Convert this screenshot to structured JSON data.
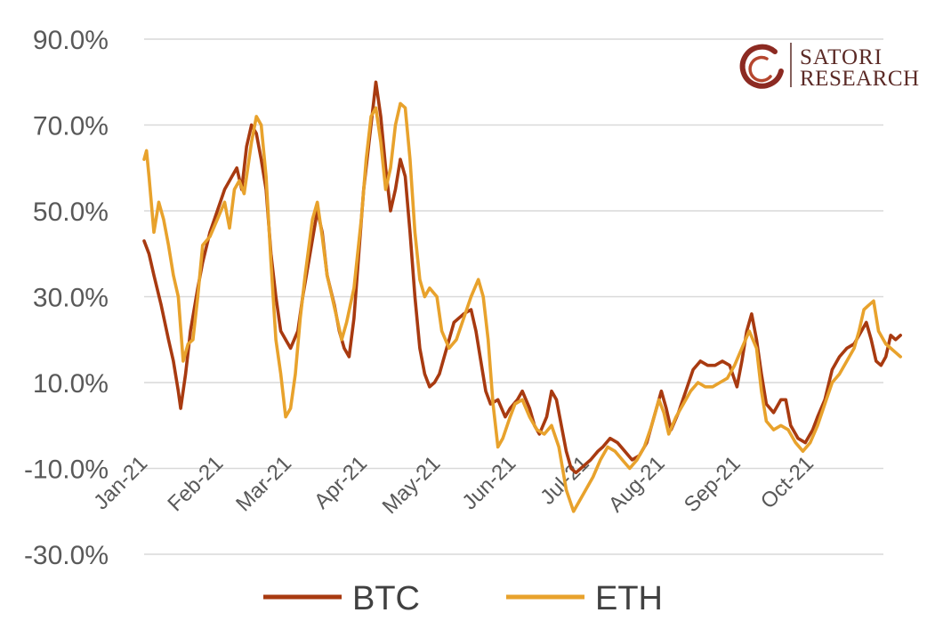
{
  "chart_data": {
    "type": "line",
    "title": "",
    "xlabel": "",
    "ylabel": "",
    "ylim": [
      -30,
      90
    ],
    "yticks": [
      -30,
      -10,
      10,
      30,
      50,
      70,
      90
    ],
    "ytick_labels": [
      "-30.0%",
      "-10.0%",
      "10.0%",
      "30.0%",
      "50.0%",
      "70.0%",
      "90.0%"
    ],
    "xticks": [
      "2021-01-01",
      "2021-02-01",
      "2021-03-01",
      "2021-04-01",
      "2021-05-01",
      "2021-06-01",
      "2021-07-01",
      "2021-08-01",
      "2021-09-01",
      "2021-10-01"
    ],
    "xtick_labels": [
      "Jan-21",
      "Feb-21",
      "Mar-21",
      "Apr-21",
      "May-21",
      "Jun-21",
      "Jul-21",
      "Aug-21",
      "Sep-21",
      "Oct-21"
    ],
    "xlim": [
      "2021-01-01",
      "2021-10-31"
    ],
    "grid": true,
    "legend_position": "bottom",
    "series": [
      {
        "name": "BTC",
        "color": "#a83a10",
        "points": [
          [
            "2021-01-01",
            43
          ],
          [
            "2021-01-03",
            40
          ],
          [
            "2021-01-05",
            35
          ],
          [
            "2021-01-08",
            28
          ],
          [
            "2021-01-11",
            20
          ],
          [
            "2021-01-13",
            15
          ],
          [
            "2021-01-15",
            8
          ],
          [
            "2021-01-16",
            4
          ],
          [
            "2021-01-18",
            12
          ],
          [
            "2021-01-20",
            22
          ],
          [
            "2021-01-23",
            32
          ],
          [
            "2021-01-25",
            38
          ],
          [
            "2021-01-28",
            45
          ],
          [
            "2021-01-31",
            50
          ],
          [
            "2021-02-03",
            55
          ],
          [
            "2021-02-06",
            58
          ],
          [
            "2021-02-08",
            60
          ],
          [
            "2021-02-10",
            55
          ],
          [
            "2021-02-12",
            65
          ],
          [
            "2021-02-14",
            70
          ],
          [
            "2021-02-16",
            68
          ],
          [
            "2021-02-18",
            62
          ],
          [
            "2021-02-20",
            55
          ],
          [
            "2021-02-22",
            40
          ],
          [
            "2021-02-24",
            30
          ],
          [
            "2021-02-26",
            22
          ],
          [
            "2021-02-28",
            20
          ],
          [
            "2021-03-02",
            18
          ],
          [
            "2021-03-05",
            22
          ],
          [
            "2021-03-07",
            30
          ],
          [
            "2021-03-10",
            40
          ],
          [
            "2021-03-13",
            50
          ],
          [
            "2021-03-15",
            45
          ],
          [
            "2021-03-17",
            35
          ],
          [
            "2021-03-20",
            28
          ],
          [
            "2021-03-22",
            22
          ],
          [
            "2021-03-24",
            18
          ],
          [
            "2021-03-26",
            16
          ],
          [
            "2021-03-28",
            25
          ],
          [
            "2021-03-30",
            40
          ],
          [
            "2021-04-01",
            55
          ],
          [
            "2021-04-03",
            65
          ],
          [
            "2021-04-05",
            75
          ],
          [
            "2021-04-06",
            80
          ],
          [
            "2021-04-08",
            72
          ],
          [
            "2021-04-10",
            60
          ],
          [
            "2021-04-12",
            50
          ],
          [
            "2021-04-14",
            55
          ],
          [
            "2021-04-16",
            62
          ],
          [
            "2021-04-18",
            58
          ],
          [
            "2021-04-20",
            45
          ],
          [
            "2021-04-22",
            30
          ],
          [
            "2021-04-24",
            18
          ],
          [
            "2021-04-26",
            12
          ],
          [
            "2021-04-28",
            9
          ],
          [
            "2021-04-30",
            10
          ],
          [
            "2021-05-02",
            12
          ],
          [
            "2021-05-05",
            18
          ],
          [
            "2021-05-08",
            24
          ],
          [
            "2021-05-12",
            26
          ],
          [
            "2021-05-15",
            27
          ],
          [
            "2021-05-17",
            22
          ],
          [
            "2021-05-19",
            15
          ],
          [
            "2021-05-21",
            8
          ],
          [
            "2021-05-23",
            5
          ],
          [
            "2021-05-26",
            6
          ],
          [
            "2021-05-29",
            2
          ],
          [
            "2021-05-31",
            4
          ],
          [
            "2021-06-03",
            6
          ],
          [
            "2021-06-05",
            8
          ],
          [
            "2021-06-08",
            4
          ],
          [
            "2021-06-10",
            0
          ],
          [
            "2021-06-12",
            -2
          ],
          [
            "2021-06-15",
            2
          ],
          [
            "2021-06-17",
            8
          ],
          [
            "2021-06-19",
            6
          ],
          [
            "2021-06-21",
            0
          ],
          [
            "2021-06-23",
            -6
          ],
          [
            "2021-06-25",
            -10
          ],
          [
            "2021-06-27",
            -11
          ],
          [
            "2021-06-29",
            -10
          ],
          [
            "2021-07-01",
            -9
          ],
          [
            "2021-07-03",
            -8
          ],
          [
            "2021-07-06",
            -6
          ],
          [
            "2021-07-08",
            -5
          ],
          [
            "2021-07-11",
            -3
          ],
          [
            "2021-07-14",
            -4
          ],
          [
            "2021-07-17",
            -6
          ],
          [
            "2021-07-20",
            -8
          ],
          [
            "2021-07-23",
            -7
          ],
          [
            "2021-07-26",
            -4
          ],
          [
            "2021-07-29",
            2
          ],
          [
            "2021-08-01",
            8
          ],
          [
            "2021-08-03",
            4
          ],
          [
            "2021-08-05",
            -1
          ],
          [
            "2021-08-08",
            3
          ],
          [
            "2021-08-11",
            8
          ],
          [
            "2021-08-14",
            13
          ],
          [
            "2021-08-17",
            15
          ],
          [
            "2021-08-20",
            14
          ],
          [
            "2021-08-23",
            14
          ],
          [
            "2021-08-26",
            15
          ],
          [
            "2021-08-29",
            14
          ],
          [
            "2021-09-01",
            9
          ],
          [
            "2021-09-03",
            15
          ],
          [
            "2021-09-05",
            22
          ],
          [
            "2021-09-07",
            26
          ],
          [
            "2021-09-09",
            20
          ],
          [
            "2021-09-11",
            12
          ],
          [
            "2021-09-13",
            5
          ],
          [
            "2021-09-16",
            3
          ],
          [
            "2021-09-19",
            6
          ],
          [
            "2021-09-21",
            6
          ],
          [
            "2021-09-23",
            0
          ],
          [
            "2021-09-26",
            -3
          ],
          [
            "2021-09-29",
            -4
          ],
          [
            "2021-10-02",
            -1
          ],
          [
            "2021-10-04",
            2
          ],
          [
            "2021-10-07",
            6
          ],
          [
            "2021-10-10",
            13
          ],
          [
            "2021-10-13",
            16
          ],
          [
            "2021-10-16",
            18
          ],
          [
            "2021-10-19",
            19
          ],
          [
            "2021-10-22",
            22
          ],
          [
            "2021-10-24",
            24
          ],
          [
            "2021-10-26",
            20
          ],
          [
            "2021-10-28",
            15
          ],
          [
            "2021-10-30",
            14
          ],
          [
            "2021-11-01",
            16
          ],
          [
            "2021-11-03",
            21
          ],
          [
            "2021-11-05",
            20
          ],
          [
            "2021-11-07",
            21
          ]
        ]
      },
      {
        "name": "ETH",
        "color": "#e8a22c",
        "points": [
          [
            "2021-01-01",
            62
          ],
          [
            "2021-01-02",
            64
          ],
          [
            "2021-01-03",
            58
          ],
          [
            "2021-01-05",
            45
          ],
          [
            "2021-01-07",
            52
          ],
          [
            "2021-01-09",
            48
          ],
          [
            "2021-01-11",
            42
          ],
          [
            "2021-01-13",
            35
          ],
          [
            "2021-01-15",
            30
          ],
          [
            "2021-01-17",
            15
          ],
          [
            "2021-01-19",
            19
          ],
          [
            "2021-01-21",
            20
          ],
          [
            "2021-01-23",
            30
          ],
          [
            "2021-01-25",
            42
          ],
          [
            "2021-01-28",
            44
          ],
          [
            "2021-01-31",
            48
          ],
          [
            "2021-02-03",
            52
          ],
          [
            "2021-02-05",
            46
          ],
          [
            "2021-02-07",
            55
          ],
          [
            "2021-02-09",
            57
          ],
          [
            "2021-02-11",
            54
          ],
          [
            "2021-02-14",
            66
          ],
          [
            "2021-02-16",
            72
          ],
          [
            "2021-02-18",
            70
          ],
          [
            "2021-02-20",
            58
          ],
          [
            "2021-02-22",
            38
          ],
          [
            "2021-02-24",
            20
          ],
          [
            "2021-02-26",
            12
          ],
          [
            "2021-02-28",
            2
          ],
          [
            "2021-03-02",
            4
          ],
          [
            "2021-03-04",
            12
          ],
          [
            "2021-03-06",
            25
          ],
          [
            "2021-03-08",
            35
          ],
          [
            "2021-03-11",
            48
          ],
          [
            "2021-03-13",
            52
          ],
          [
            "2021-03-15",
            44
          ],
          [
            "2021-03-17",
            35
          ],
          [
            "2021-03-19",
            30
          ],
          [
            "2021-03-21",
            25
          ],
          [
            "2021-03-23",
            20
          ],
          [
            "2021-03-25",
            24
          ],
          [
            "2021-03-28",
            32
          ],
          [
            "2021-03-31",
            48
          ],
          [
            "2021-04-02",
            62
          ],
          [
            "2021-04-04",
            72
          ],
          [
            "2021-04-06",
            74
          ],
          [
            "2021-04-08",
            66
          ],
          [
            "2021-04-10",
            55
          ],
          [
            "2021-04-12",
            60
          ],
          [
            "2021-04-14",
            70
          ],
          [
            "2021-04-16",
            75
          ],
          [
            "2021-04-18",
            74
          ],
          [
            "2021-04-20",
            62
          ],
          [
            "2021-04-22",
            45
          ],
          [
            "2021-04-24",
            34
          ],
          [
            "2021-04-26",
            30
          ],
          [
            "2021-04-28",
            32
          ],
          [
            "2021-05-01",
            30
          ],
          [
            "2021-05-03",
            22
          ],
          [
            "2021-05-06",
            18
          ],
          [
            "2021-05-09",
            20
          ],
          [
            "2021-05-12",
            25
          ],
          [
            "2021-05-15",
            30
          ],
          [
            "2021-05-18",
            34
          ],
          [
            "2021-05-20",
            30
          ],
          [
            "2021-05-22",
            20
          ],
          [
            "2021-05-24",
            5
          ],
          [
            "2021-05-26",
            -5
          ],
          [
            "2021-05-28",
            -3
          ],
          [
            "2021-05-31",
            2
          ],
          [
            "2021-06-02",
            5
          ],
          [
            "2021-06-05",
            6
          ],
          [
            "2021-06-08",
            2
          ],
          [
            "2021-06-11",
            -1
          ],
          [
            "2021-06-14",
            -2
          ],
          [
            "2021-06-17",
            0
          ],
          [
            "2021-06-20",
            -5
          ],
          [
            "2021-06-23",
            -15
          ],
          [
            "2021-06-26",
            -20
          ],
          [
            "2021-06-28",
            -18
          ],
          [
            "2021-07-01",
            -15
          ],
          [
            "2021-07-04",
            -12
          ],
          [
            "2021-07-07",
            -8
          ],
          [
            "2021-07-10",
            -5
          ],
          [
            "2021-07-13",
            -6
          ],
          [
            "2021-07-16",
            -8
          ],
          [
            "2021-07-19",
            -10
          ],
          [
            "2021-07-22",
            -8
          ],
          [
            "2021-07-25",
            -5
          ],
          [
            "2021-07-28",
            0
          ],
          [
            "2021-07-31",
            6
          ],
          [
            "2021-08-02",
            3
          ],
          [
            "2021-08-04",
            -2
          ],
          [
            "2021-08-07",
            2
          ],
          [
            "2021-08-10",
            5
          ],
          [
            "2021-08-13",
            8
          ],
          [
            "2021-08-16",
            10
          ],
          [
            "2021-08-19",
            9
          ],
          [
            "2021-08-22",
            9
          ],
          [
            "2021-08-25",
            10
          ],
          [
            "2021-08-28",
            11
          ],
          [
            "2021-08-31",
            14
          ],
          [
            "2021-09-03",
            18
          ],
          [
            "2021-09-06",
            22
          ],
          [
            "2021-09-09",
            18
          ],
          [
            "2021-09-11",
            8
          ],
          [
            "2021-09-13",
            1
          ],
          [
            "2021-09-16",
            -1
          ],
          [
            "2021-09-19",
            0
          ],
          [
            "2021-09-22",
            -1
          ],
          [
            "2021-09-25",
            -4
          ],
          [
            "2021-09-28",
            -6
          ],
          [
            "2021-10-01",
            -4
          ],
          [
            "2021-10-04",
            0
          ],
          [
            "2021-10-07",
            5
          ],
          [
            "2021-10-10",
            10
          ],
          [
            "2021-10-13",
            12
          ],
          [
            "2021-10-16",
            15
          ],
          [
            "2021-10-19",
            18
          ],
          [
            "2021-10-21",
            22
          ],
          [
            "2021-10-23",
            27
          ],
          [
            "2021-10-25",
            28
          ],
          [
            "2021-10-27",
            29
          ],
          [
            "2021-10-29",
            22
          ],
          [
            "2021-11-01",
            19
          ],
          [
            "2021-11-03",
            18
          ],
          [
            "2021-11-05",
            17
          ],
          [
            "2021-11-07",
            16
          ]
        ]
      }
    ]
  },
  "logo": {
    "line1": "SATORI",
    "line2": "RESEARCH"
  }
}
